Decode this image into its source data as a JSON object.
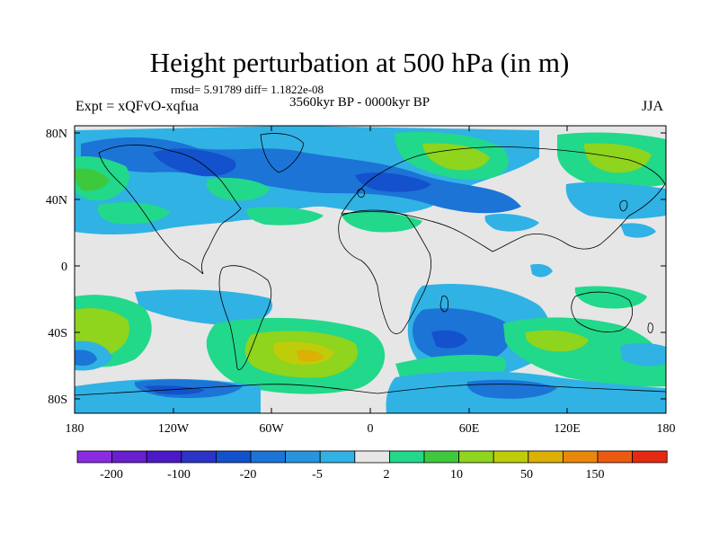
{
  "title": "Height perturbation at 500 hPa (in m)",
  "stats_line": "rmsd= 5.91789 diff= 1.1822e-08",
  "experiment": "Expt = xQFvO-xqfua",
  "period": "3560kyr BP - 0000kyr BP",
  "season": "JJA",
  "axes": {
    "lat_labels": [
      "80N",
      "40N",
      "0",
      "40S",
      "80S"
    ],
    "lon_labels": [
      "180",
      "120W",
      "60W",
      "0",
      "60E",
      "120E",
      "180"
    ]
  },
  "colorbar": {
    "colors": [
      "#8a2be2",
      "#6a1fd0",
      "#4b19c8",
      "#2b33c9",
      "#1352cc",
      "#1c74d6",
      "#2794dd",
      "#30b2e4",
      "#e6e6e6",
      "#22d88a",
      "#3ec93c",
      "#8fd41d",
      "#bfcc0a",
      "#dcb005",
      "#e8880a",
      "#ec5a10",
      "#e52a12"
    ],
    "labels": [
      "-200",
      "-100",
      "-20",
      "-5",
      "2",
      "10",
      "50",
      "150"
    ]
  },
  "map_colors": {
    "background": "#e6e6e6",
    "light_blue": "#30b2e4",
    "mid_blue": "#1c74d6",
    "dark_blue": "#1352cc",
    "green": "#22d88a",
    "mid_green": "#3ec93c",
    "yellow_green": "#8fd41d",
    "yellow": "#bfcc0a",
    "orange": "#dcb005"
  }
}
